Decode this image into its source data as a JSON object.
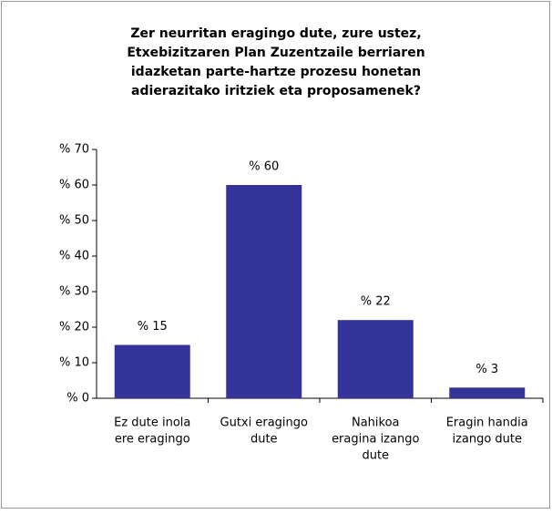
{
  "chart_data": {
    "type": "bar",
    "title": [
      "Zer neurritan eragingo dute, zure ustez,",
      "Etxebizitzaren Plan Zuzentzaile berriaren",
      "idazketan parte-hartze prozesu honetan",
      "adierazitako iritziek eta proposamenek?"
    ],
    "categories": [
      [
        "Ez dute inola",
        "ere eragingo"
      ],
      [
        "Gutxi eragingo",
        "dute"
      ],
      [
        "Nahikoa",
        "eragina izango",
        "dute"
      ],
      [
        "Eragin handia",
        "izango dute"
      ]
    ],
    "values": [
      15,
      60,
      22,
      3
    ],
    "value_labels": [
      "% 15",
      "% 60",
      "% 22",
      "% 3"
    ],
    "color": "#333399",
    "ylim": [
      0,
      70
    ],
    "yticks": [
      {
        "value": 0,
        "label": "% 0"
      },
      {
        "value": 10,
        "label": "% 10"
      },
      {
        "value": 20,
        "label": "% 20"
      },
      {
        "value": 30,
        "label": "% 30"
      },
      {
        "value": 40,
        "label": "% 40"
      },
      {
        "value": 50,
        "label": "% 50"
      },
      {
        "value": 60,
        "label": "% 60"
      },
      {
        "value": 70,
        "label": "% 70"
      }
    ],
    "grid": false
  }
}
